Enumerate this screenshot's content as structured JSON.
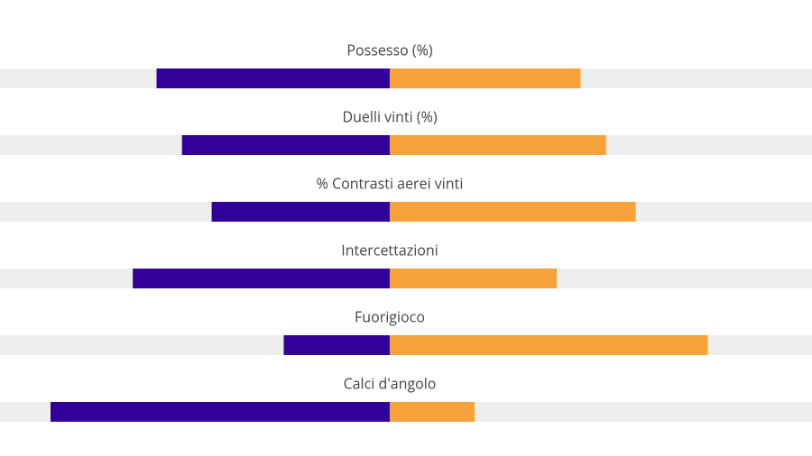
{
  "chart_data": {
    "type": "diverging-bar",
    "categories": [
      "Possesso (%)",
      "Duelli vinti (%)",
      "% Contrasti aerei vinti",
      "Intercettazioni",
      "Fuorigioco",
      "Calci d'angolo"
    ],
    "series": [
      {
        "color": "#32009a",
        "values": [
          55,
          49,
          42,
          20,
          1,
          4
        ]
      },
      {
        "color": "#f7a23b",
        "values": [
          45,
          51,
          58,
          13,
          3,
          1
        ]
      }
    ],
    "track_color": "#eeeeee"
  }
}
